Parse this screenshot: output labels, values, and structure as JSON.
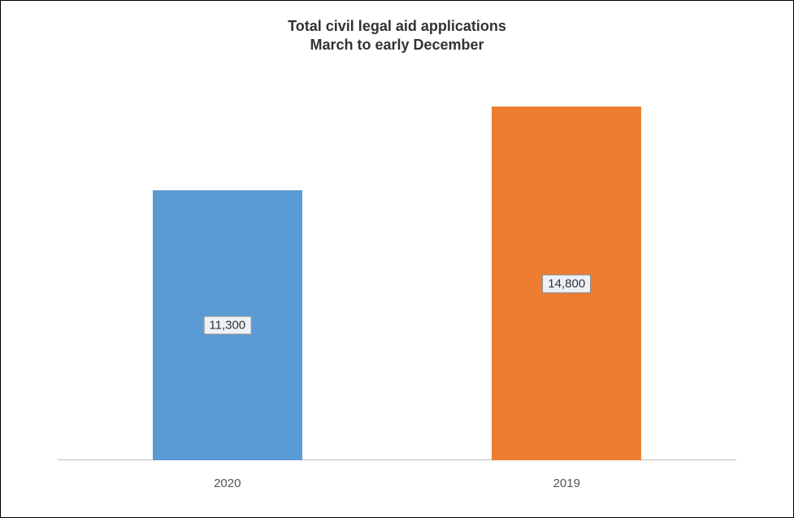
{
  "chart": {
    "type": "bar",
    "title_line1": "Total civil legal aid applications",
    "title_line2": "March to early December",
    "title_fontsize": 18,
    "title_color": "#333333",
    "background_color": "#ffffff",
    "border_color": "#000000",
    "plot": {
      "ymin": 0,
      "ymax": 16000,
      "baseline_color": "#bfbfbf"
    },
    "bars": [
      {
        "category": "2020",
        "value": 11300,
        "value_label": "11,300",
        "color": "#5b9bd5",
        "center_pct": 25,
        "width_pct": 22
      },
      {
        "category": "2019",
        "value": 14800,
        "value_label": "14,800",
        "color": "#ed7d31",
        "center_pct": 75,
        "width_pct": 22
      }
    ],
    "label_box": {
      "fill": "#edf2f8",
      "border": "#888888",
      "fontsize": 15,
      "text_color": "#333333"
    },
    "xlabel_fontsize": 15,
    "xlabel_color": "#555555"
  }
}
